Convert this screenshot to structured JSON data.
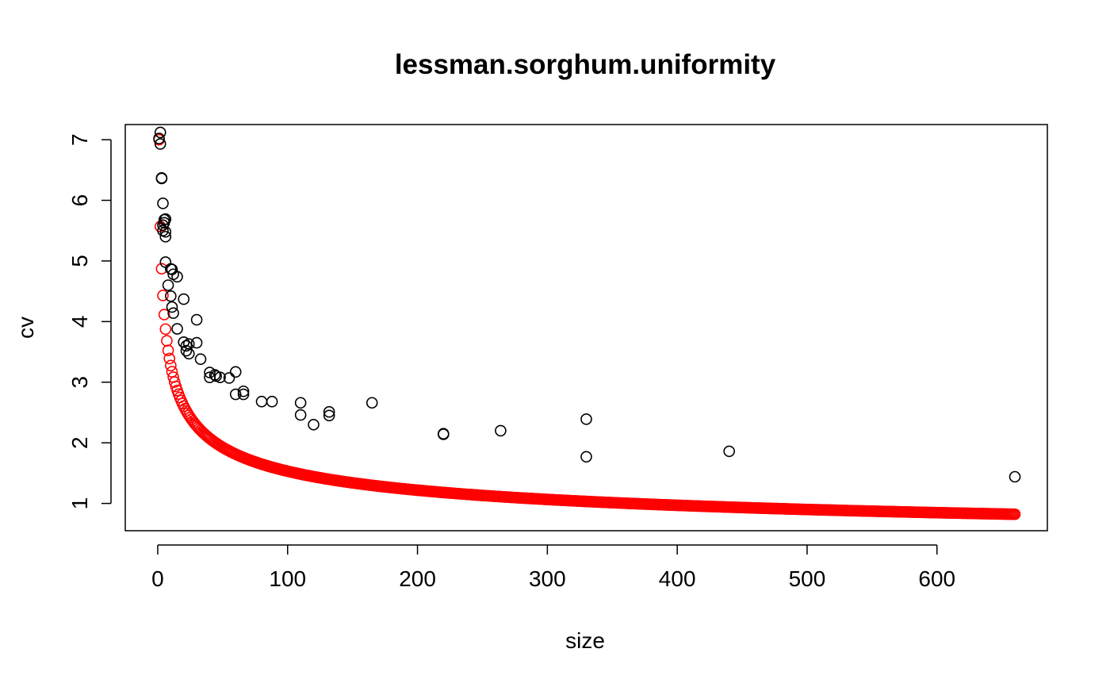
{
  "chart_data": {
    "type": "scatter",
    "title": "lessman.sorghum.uniformity",
    "xlabel": "size",
    "ylabel": "cv",
    "xlim": [
      -25,
      685
    ],
    "ylim": [
      0.55,
      7.25
    ],
    "xticks": [
      0,
      100,
      200,
      300,
      400,
      500,
      600
    ],
    "yticks": [
      1,
      2,
      3,
      4,
      5,
      6,
      7
    ],
    "grid": false,
    "series": [
      {
        "marker": "open-circle",
        "color": "#000000",
        "points": [
          [
            1,
            7.02
          ],
          [
            2,
            6.93
          ],
          [
            2,
            7.12
          ],
          [
            3,
            6.36
          ],
          [
            3,
            6.37
          ],
          [
            4,
            5.95
          ],
          [
            4,
            5.59
          ],
          [
            4,
            5.5
          ],
          [
            5,
            5.68
          ],
          [
            5,
            5.63
          ],
          [
            6,
            5.69
          ],
          [
            6,
            5.48
          ],
          [
            6,
            5.4
          ],
          [
            6,
            4.98
          ],
          [
            8,
            4.6
          ],
          [
            10,
            4.87
          ],
          [
            10,
            4.42
          ],
          [
            11,
            4.86
          ],
          [
            11,
            4.24
          ],
          [
            12,
            4.78
          ],
          [
            12,
            4.14
          ],
          [
            15,
            4.74
          ],
          [
            15,
            3.88
          ],
          [
            20,
            4.37
          ],
          [
            20,
            3.66
          ],
          [
            22,
            3.6
          ],
          [
            22,
            3.52
          ],
          [
            24,
            3.47
          ],
          [
            24,
            3.63
          ],
          [
            30,
            4.03
          ],
          [
            30,
            3.65
          ],
          [
            33,
            3.38
          ],
          [
            40,
            3.16
          ],
          [
            40,
            3.08
          ],
          [
            44,
            3.12
          ],
          [
            45,
            3.1
          ],
          [
            48,
            3.08
          ],
          [
            55,
            3.07
          ],
          [
            60,
            3.17
          ],
          [
            60,
            2.8
          ],
          [
            66,
            2.8
          ],
          [
            66,
            2.85
          ],
          [
            80,
            2.68
          ],
          [
            88,
            2.68
          ],
          [
            110,
            2.66
          ],
          [
            110,
            2.46
          ],
          [
            120,
            2.3
          ],
          [
            132,
            2.51
          ],
          [
            132,
            2.45
          ],
          [
            165,
            2.66
          ],
          [
            220,
            2.15
          ],
          [
            220,
            2.14
          ],
          [
            264,
            2.2
          ],
          [
            330,
            2.39
          ],
          [
            330,
            1.77
          ],
          [
            440,
            1.86
          ],
          [
            660,
            1.44
          ]
        ]
      },
      {
        "marker": "open-circle",
        "color": "#ff0000",
        "model": "7.0 * size^-0.33",
        "x_range": [
          1,
          660
        ],
        "x_step": 1
      }
    ]
  }
}
